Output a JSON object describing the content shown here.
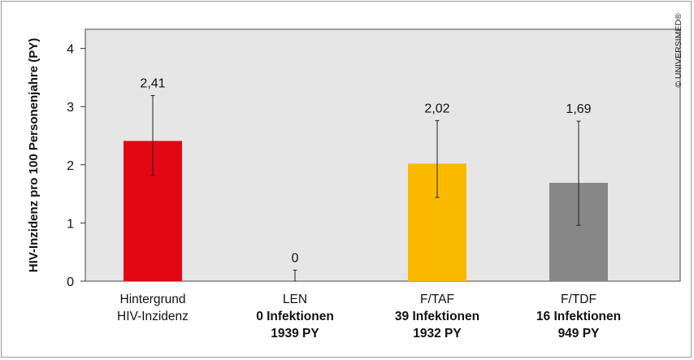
{
  "chart_data": {
    "type": "bar",
    "ylabel": "HIV-Inzidenz pro 100 Personenjahre (PY)",
    "ylim": [
      0,
      4.2
    ],
    "yticks": [
      0,
      1,
      2,
      3,
      4
    ],
    "grid": false,
    "categories": [
      {
        "lines": [
          "Hintergrund",
          "HIV-Inzidenz"
        ],
        "bold": [
          false,
          false
        ]
      },
      {
        "lines": [
          "LEN",
          "0 Infektionen",
          "1939 PY"
        ],
        "bold": [
          false,
          true,
          true
        ]
      },
      {
        "lines": [
          "F/TAF",
          "39 Infektionen",
          "1932 PY"
        ],
        "bold": [
          false,
          true,
          true
        ]
      },
      {
        "lines": [
          "F/TDF",
          "16 Infektionen",
          "949 PY"
        ],
        "bold": [
          false,
          true,
          true
        ]
      }
    ],
    "values": [
      2.41,
      0,
      2.02,
      1.69
    ],
    "value_labels": [
      "2,41",
      "0",
      "2,02",
      "1,69"
    ],
    "error_low": [
      1.82,
      0,
      1.44,
      0.96
    ],
    "error_high": [
      3.19,
      0.19,
      2.76,
      2.75
    ],
    "colors": [
      "#e30613",
      "#e30613",
      "#fbb900",
      "#878787"
    ],
    "plot_background": "#e6e6e6"
  },
  "copyright": "© UNIVERSIMED®"
}
